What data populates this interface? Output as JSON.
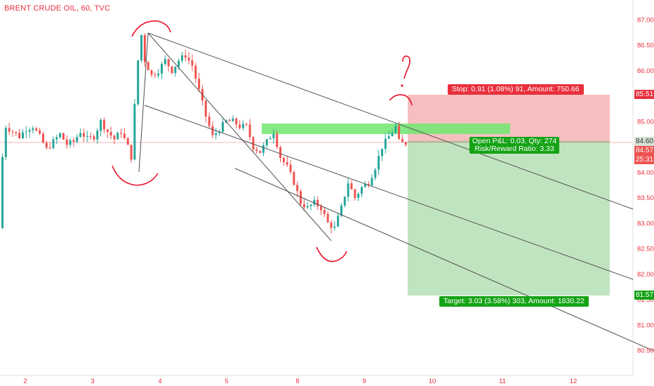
{
  "header": {
    "title": "BRENT CRUDE OIL, 60, TVC"
  },
  "price_axis": {
    "labels": [
      "87.00",
      "86.50",
      "86.00",
      "85.50",
      "85.00",
      "84.50",
      "84.00",
      "83.50",
      "83.00",
      "82.50",
      "82.00",
      "81.50",
      "81.00",
      "80.50"
    ],
    "tags": {
      "stop": "85.51",
      "entry": "84.60",
      "current": "84.57",
      "countdown": "25:31",
      "target": "81.57"
    }
  },
  "time_axis": {
    "labels": [
      "2",
      "3",
      "4",
      "5",
      "8",
      "9",
      "10",
      "11",
      "12"
    ]
  },
  "position_tool": {
    "stop_label": "Stop: 0.91 (1.08%) 91, Amount: 750.66",
    "pnl_label": "Open P&L: 0.03, Qty: 274",
    "rr_label": "Risk/Reward Ratio: 3.33",
    "target_label": "Target: 3.03 (3.58%) 303, Amount: 1830.22"
  },
  "annotations": {
    "question_mark": "?"
  },
  "colors": {
    "up": "#26a69a",
    "down": "#ef5350",
    "stop_zone": "#f4b4b4",
    "target_zone": "#b5dfb5",
    "highlight_zone": "#7df07d",
    "drawing": "#e8112d",
    "axis_text": "#e8303c"
  },
  "chart_data": {
    "type": "candlestick",
    "title": "BRENT CRUDE OIL, 60, TVC",
    "y_range": [
      80.2,
      87.3
    ],
    "x_tick_labels": [
      "2",
      "3",
      "4",
      "5",
      "8",
      "9",
      "10",
      "11",
      "12"
    ],
    "approx_path": [
      [
        0,
        82.9
      ],
      [
        1,
        84.3
      ],
      [
        2,
        84.9
      ],
      [
        4,
        84.8
      ],
      [
        6,
        84.7
      ],
      [
        8,
        84.85
      ],
      [
        10,
        84.9
      ],
      [
        12,
        84.7
      ],
      [
        14,
        84.45
      ],
      [
        16,
        84.6
      ],
      [
        18,
        84.75
      ],
      [
        20,
        84.55
      ],
      [
        22,
        84.6
      ],
      [
        24,
        84.8
      ],
      [
        26,
        84.65
      ],
      [
        28,
        84.7
      ],
      [
        30,
        85.0
      ],
      [
        32,
        84.8
      ],
      [
        34,
        84.65
      ],
      [
        36,
        84.8
      ],
      [
        38,
        84.5
      ],
      [
        39,
        84.3
      ],
      [
        40,
        85.3
      ],
      [
        41,
        86.2
      ],
      [
        42,
        86.7
      ],
      [
        43,
        86.2
      ],
      [
        45,
        85.9
      ],
      [
        47,
        86.0
      ],
      [
        49,
        86.2
      ],
      [
        51,
        86.0
      ],
      [
        53,
        86.2
      ],
      [
        55,
        86.3
      ],
      [
        57,
        86.1
      ],
      [
        59,
        85.6
      ],
      [
        61,
        85.1
      ],
      [
        63,
        84.7
      ],
      [
        65,
        84.85
      ],
      [
        67,
        85.0
      ],
      [
        69,
        85.0
      ],
      [
        71,
        84.9
      ],
      [
        73,
        84.9
      ],
      [
        75,
        84.5
      ],
      [
        77,
        84.4
      ],
      [
        79,
        84.6
      ],
      [
        81,
        84.8
      ],
      [
        83,
        84.3
      ],
      [
        85,
        84.1
      ],
      [
        87,
        83.8
      ],
      [
        89,
        83.4
      ],
      [
        91,
        83.3
      ],
      [
        93,
        83.4
      ],
      [
        95,
        83.3
      ],
      [
        97,
        83.0
      ],
      [
        99,
        82.9
      ],
      [
        101,
        83.3
      ],
      [
        103,
        83.8
      ],
      [
        105,
        83.5
      ],
      [
        107,
        83.7
      ],
      [
        109,
        83.8
      ],
      [
        111,
        84.1
      ],
      [
        113,
        84.5
      ],
      [
        115,
        84.7
      ],
      [
        117,
        84.9
      ],
      [
        118,
        84.6
      ],
      [
        119,
        84.57
      ]
    ],
    "position": {
      "entry": 84.6,
      "stop": 85.51,
      "target": 81.57
    },
    "channel": {
      "top_start": 86.75,
      "mid_start": 85.35,
      "low_start": 84.0
    }
  }
}
